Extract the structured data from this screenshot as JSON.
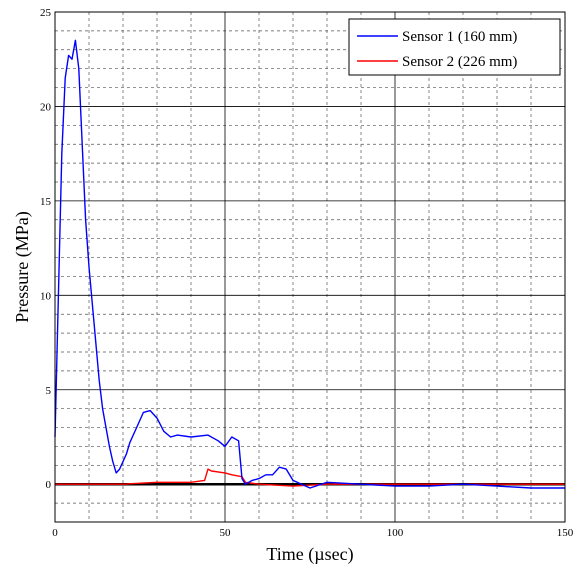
{
  "chart_data": {
    "type": "line",
    "title": "",
    "xlabel": "Time (µsec)",
    "ylabel": "Pressure (MPa)",
    "xlim": [
      0,
      150
    ],
    "ylim": [
      -2,
      25
    ],
    "xticks": [
      "0",
      "50",
      "100",
      "150"
    ],
    "yticks": [
      "0",
      "5",
      "10",
      "15",
      "20",
      "25"
    ],
    "grid": true,
    "minor_grid": "dashed",
    "legend_position": "top-right",
    "series": [
      {
        "name": "Sensor 1 (160 mm)",
        "color": "#0000ff",
        "x": [
          0,
          1,
          2,
          3,
          4,
          5,
          6,
          7,
          8,
          9,
          10,
          11,
          12,
          13,
          14,
          15,
          16,
          17,
          18,
          19,
          20,
          21,
          22,
          24,
          26,
          28,
          30,
          32,
          34,
          36,
          40,
          45,
          48,
          50,
          52,
          54,
          55,
          56,
          58,
          60,
          62,
          64,
          66,
          68,
          70,
          75,
          80,
          90,
          100,
          110,
          120,
          130,
          140,
          150
        ],
        "y": [
          2.5,
          10.0,
          17.5,
          21.5,
          22.7,
          22.5,
          23.5,
          22.0,
          18.0,
          14.0,
          11.5,
          9.5,
          7.5,
          5.5,
          4.0,
          3.0,
          2.0,
          1.2,
          0.6,
          0.8,
          1.2,
          1.6,
          2.2,
          3.0,
          3.8,
          3.9,
          3.5,
          2.8,
          2.5,
          2.6,
          2.5,
          2.6,
          2.3,
          2.0,
          2.5,
          2.3,
          0.3,
          0.0,
          0.2,
          0.3,
          0.5,
          0.5,
          0.9,
          0.8,
          0.2,
          -0.2,
          0.1,
          0.0,
          -0.1,
          -0.1,
          0.0,
          -0.1,
          -0.2,
          -0.2
        ]
      },
      {
        "name": "Sensor 2 (226 mm)",
        "color": "#ff0000",
        "x": [
          0,
          10,
          20,
          30,
          40,
          44,
          45,
          46,
          50,
          52,
          55,
          56,
          60,
          70,
          80,
          90,
          100,
          110,
          120,
          130,
          140,
          150
        ],
        "y": [
          0.0,
          0.0,
          0.0,
          0.1,
          0.1,
          0.2,
          0.8,
          0.7,
          0.6,
          0.5,
          0.4,
          0.1,
          0.0,
          -0.1,
          0.0,
          0.0,
          0.0,
          0.0,
          0.0,
          0.0,
          0.0,
          0.0
        ]
      }
    ]
  }
}
